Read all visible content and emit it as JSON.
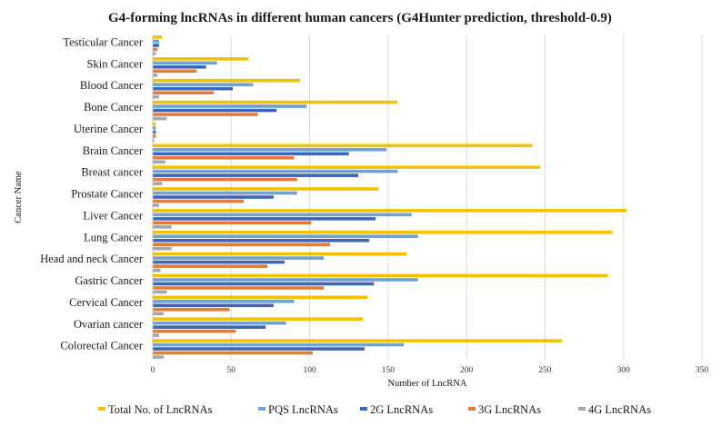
{
  "chart_data": {
    "type": "bar",
    "orientation": "horizontal",
    "title": "G4-forming lncRNAs in different human cancers (G4Hunter prediction, threshold-0.9)",
    "xlabel": "Number of LncRNA",
    "ylabel": "Cancer Name",
    "xlim": [
      0,
      350
    ],
    "xticks": [
      0,
      50,
      100,
      150,
      200,
      250,
      300,
      350
    ],
    "grid": "vertical",
    "legend_position": "bottom",
    "categories": [
      "Testicular Cancer",
      "Skin Cancer",
      "Blood Cancer",
      "Bone Cancer",
      "Uterine Cancer",
      "Brain Cancer",
      "Breast cancer",
      "Prostate Cancer",
      "Liver Cancer",
      "Lung Cancer",
      "Head and neck Cancer",
      "Gastric Cancer",
      "Cervical Cancer",
      "Ovarian cancer",
      "Colorectal Cancer"
    ],
    "series": [
      {
        "name": "Total No. of LncRNAs",
        "color": "#F2C200",
        "values": [
          6,
          61,
          94,
          156,
          2,
          242,
          247,
          144,
          302,
          293,
          162,
          290,
          137,
          134,
          261
        ]
      },
      {
        "name": "PQS LncRNAs",
        "color": "#6FA1D3",
        "values": [
          4,
          41,
          64,
          98,
          2,
          149,
          156,
          92,
          165,
          169,
          109,
          169,
          90,
          85,
          160
        ]
      },
      {
        "name": "2G LncRNAs",
        "color": "#3D66B8",
        "values": [
          4,
          34,
          51,
          79,
          2,
          125,
          131,
          77,
          142,
          138,
          84,
          141,
          77,
          72,
          135
        ]
      },
      {
        "name": "3G LncRNAs",
        "color": "#E47B3A",
        "values": [
          3,
          28,
          39,
          67,
          2,
          90,
          92,
          58,
          101,
          113,
          73,
          109,
          49,
          53,
          102
        ]
      },
      {
        "name": "4G LncRNAs",
        "color": "#A6A6A6",
        "values": [
          2,
          3,
          4,
          9,
          1,
          8,
          6,
          4,
          12,
          12,
          5,
          9,
          7,
          4,
          7
        ]
      }
    ]
  }
}
